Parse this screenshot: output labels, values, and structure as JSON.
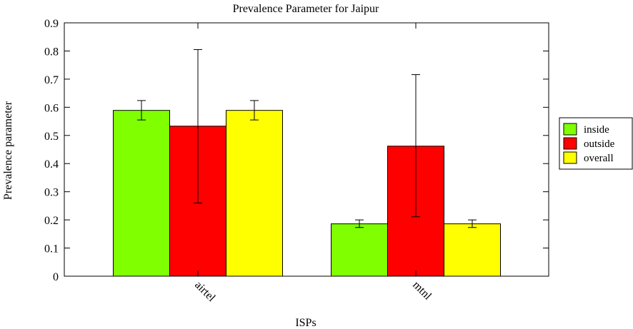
{
  "chart_data": {
    "type": "bar",
    "title": "Prevalence Parameter for Jaipur",
    "xlabel": "ISPs",
    "ylabel": "Prevalence parameter",
    "ylim": [
      0,
      0.9
    ],
    "yticks": [
      0,
      0.1,
      0.2,
      0.3,
      0.4,
      0.5,
      0.6,
      0.7,
      0.8,
      0.9
    ],
    "ytick_labels": [
      "0",
      "0.1",
      "0.2",
      "0.3",
      "0.4",
      "0.5",
      "0.6",
      "0.7",
      "0.8",
      "0.9"
    ],
    "categories": [
      "airtel",
      "mtnl"
    ],
    "series": [
      {
        "name": "inside",
        "color": "#7fff00",
        "values": [
          0.589,
          0.186
        ],
        "errors": [
          [
            0.555,
            0.624
          ],
          [
            0.173,
            0.2
          ]
        ]
      },
      {
        "name": "outside",
        "color": "#ff0000",
        "values": [
          0.533,
          0.462
        ],
        "errors": [
          [
            0.26,
            0.805
          ],
          [
            0.211,
            0.716
          ]
        ]
      },
      {
        "name": "overall",
        "color": "#ffff00",
        "values": [
          0.589,
          0.186
        ],
        "errors": [
          [
            0.555,
            0.624
          ],
          [
            0.173,
            0.2
          ]
        ]
      }
    ],
    "grid": false,
    "legend_position": "right"
  }
}
